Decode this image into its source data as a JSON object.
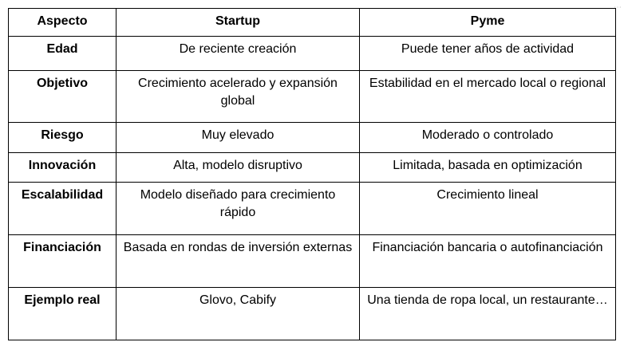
{
  "table": {
    "headers": [
      "Aspecto",
      "Startup",
      "Pyme"
    ],
    "rows": [
      [
        "Edad",
        "De reciente creación",
        "Puede tener años de actividad"
      ],
      [
        "Objetivo",
        "Crecimiento acelerado y expansión global",
        "Estabilidad en el mercado local o regional"
      ],
      [
        "Riesgo",
        "Muy elevado",
        "Moderado o controlado"
      ],
      [
        "Innovación",
        "Alta, modelo disruptivo",
        "Limitada, basada en optimización"
      ],
      [
        "Escalabilidad",
        "Modelo diseñado para crecimiento rápido",
        "Crecimiento lineal"
      ],
      [
        "Financiación",
        "Basada en rondas de inversión externas",
        "Financiación bancaria o autofinanciación"
      ],
      [
        "Ejemplo real",
        "Glovo, Cabify",
        "Una tienda de ropa local, un restaurante…"
      ]
    ]
  },
  "icons": {
    "more": "more-dots-icon"
  }
}
